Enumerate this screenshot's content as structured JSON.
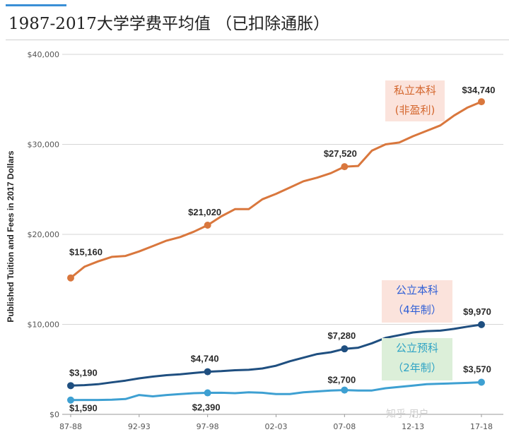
{
  "title": "1987-2017大学学费平均值 （已扣除通胀）",
  "watermark": "知乎 用户",
  "chart_data": {
    "type": "line",
    "ylabel": "Published Tuition and Fees in 2017 Dollars",
    "ylim": [
      0,
      40000
    ],
    "yticks": [
      "$0",
      "$10,000",
      "$20,000",
      "$30,000",
      "$40,000"
    ],
    "ytick_values": [
      0,
      10000,
      20000,
      30000,
      40000
    ],
    "x": [
      "87-88",
      "88-89",
      "89-90",
      "90-91",
      "91-92",
      "92-93",
      "93-94",
      "94-95",
      "95-96",
      "96-97",
      "97-98",
      "98-99",
      "99-00",
      "00-01",
      "01-02",
      "02-03",
      "03-04",
      "04-05",
      "05-06",
      "06-07",
      "07-08",
      "08-09",
      "09-10",
      "10-11",
      "11-12",
      "12-13",
      "13-14",
      "14-15",
      "15-16",
      "16-17",
      "17-18"
    ],
    "xticks": [
      "87-88",
      "92-93",
      "97-98",
      "02-03",
      "07-08",
      "12-13",
      "17-18"
    ],
    "grid": true,
    "series": [
      {
        "name": "私立本科 (非盈利)",
        "legend_lines": [
          "私立本科",
          "(非盈利)"
        ],
        "color": "#d9773d",
        "values": [
          15160,
          16400,
          17000,
          17500,
          17600,
          18100,
          18700,
          19300,
          19700,
          20300,
          21020,
          22000,
          22800,
          22800,
          23900,
          24500,
          25200,
          25900,
          26300,
          26800,
          27520,
          27600,
          29300,
          30000,
          30200,
          30900,
          31500,
          32100,
          33200,
          34100,
          34740
        ],
        "labels": [
          {
            "index": 0,
            "text": "$15,160"
          },
          {
            "index": 10,
            "text": "$21,020"
          },
          {
            "index": 20,
            "text": "$27,520"
          },
          {
            "index": 30,
            "text": "$34,740"
          }
        ]
      },
      {
        "name": "公立本科 (4年制)",
        "legend_lines": [
          "公立本科",
          "（4年制）"
        ],
        "color": "#1f4f80",
        "values": [
          3190,
          3250,
          3350,
          3550,
          3750,
          4000,
          4200,
          4350,
          4450,
          4600,
          4740,
          4800,
          4900,
          4950,
          5100,
          5400,
          5900,
          6300,
          6700,
          6900,
          7280,
          7400,
          7900,
          8500,
          8800,
          9100,
          9250,
          9300,
          9500,
          9750,
          9970
        ],
        "labels": [
          {
            "index": 0,
            "text": "$3,190"
          },
          {
            "index": 10,
            "text": "$4,740"
          },
          {
            "index": 20,
            "text": "$7,280"
          },
          {
            "index": 30,
            "text": "$9,970"
          }
        ]
      },
      {
        "name": "公立预科 (2年制)",
        "legend_lines": [
          "公立预科",
          "（2年制）"
        ],
        "color": "#3ea0d2",
        "values": [
          1590,
          1600,
          1600,
          1620,
          1700,
          2150,
          2000,
          2150,
          2250,
          2350,
          2390,
          2400,
          2350,
          2450,
          2400,
          2250,
          2250,
          2450,
          2550,
          2650,
          2700,
          2650,
          2650,
          2900,
          3050,
          3200,
          3350,
          3400,
          3450,
          3500,
          3570
        ],
        "labels": [
          {
            "index": 0,
            "text": "$1,590"
          },
          {
            "index": 10,
            "text": "$2,390"
          },
          {
            "index": 20,
            "text": "$2,700"
          },
          {
            "index": 30,
            "text": "$3,570"
          }
        ]
      }
    ]
  }
}
